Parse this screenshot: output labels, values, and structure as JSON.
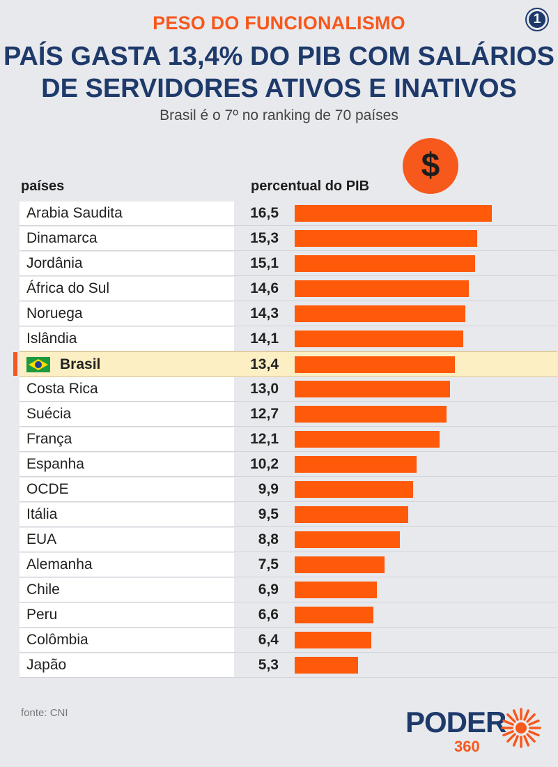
{
  "header": {
    "kicker": "PESO DO FUNCIONALISMO",
    "badge": "1",
    "title_line1": "PAÍS GASTA 13,4% DO PIB COM SALÁRIOS",
    "title_line2": "DE SERVIDORES ATIVOS E INATIVOS",
    "subtitle": "Brasil é o 7º no ranking de 70 países",
    "dollar_symbol": "$"
  },
  "table": {
    "col_country": "países",
    "col_value": "percentual do PIB"
  },
  "colors": {
    "accent": "#f7581c",
    "bar": "#ff5a0a",
    "navy": "#1e3a6b",
    "highlight_bg": "#fdefc4",
    "background": "#e8e9ed"
  },
  "chart_data": {
    "type": "bar",
    "orientation": "horizontal",
    "categories": [
      "Arabia Saudita",
      "Dinamarca",
      "Jordânia",
      "África do Sul",
      "Noruega",
      "Islândia",
      "Brasil",
      "Costa Rica",
      "Suécia",
      "França",
      "Espanha",
      "OCDE",
      "Itália",
      "EUA",
      "Alemanha",
      "Chile",
      "Peru",
      "Colômbia",
      "Japão"
    ],
    "values": [
      16.5,
      15.3,
      15.1,
      14.6,
      14.3,
      14.1,
      13.4,
      13.0,
      12.7,
      12.1,
      10.2,
      9.9,
      9.5,
      8.8,
      7.5,
      6.9,
      6.6,
      6.4,
      5.3
    ],
    "labels": [
      "16,5",
      "15,3",
      "15,1",
      "14,6",
      "14,3",
      "14,1",
      "13,4",
      "13,0",
      "12,7",
      "12,1",
      "10,2",
      "9,9",
      "9,5",
      "8,8",
      "7,5",
      "6,9",
      "6,6",
      "6,4",
      "5,3"
    ],
    "highlight": "Brasil",
    "xlim": [
      0,
      16.5
    ]
  },
  "footer": {
    "source": "fonte: CNI",
    "logo_word": "PODER",
    "logo_number": "360"
  }
}
